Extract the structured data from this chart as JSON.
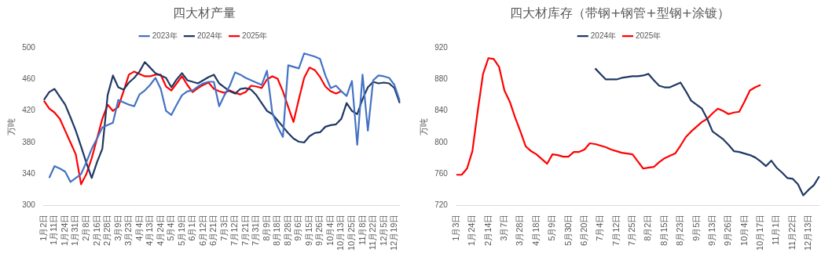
{
  "chart_data": [
    {
      "type": "line",
      "title": "四大材产量",
      "ylabel": "万吨",
      "legend": "top",
      "grid": false,
      "marker": "none",
      "ylim": [
        300,
        500
      ],
      "yticks": [
        300,
        340,
        380,
        420,
        460,
        500
      ],
      "categories": [
        "1月2日",
        null,
        "1月11日",
        null,
        "1月24日",
        null,
        "1月31日",
        null,
        "2月8日",
        null,
        "2月16日",
        null,
        "2月28日",
        null,
        "3月9日",
        null,
        "3月23日",
        null,
        "4月4日",
        null,
        "4月13日",
        null,
        "4月24日",
        null,
        "5月4日",
        null,
        "5月19日",
        null,
        "6月1日",
        null,
        "6月12日",
        null,
        "6月21日",
        null,
        "7月3日",
        null,
        "7月12日",
        null,
        "7月21日",
        null,
        "7月31日",
        null,
        "8月9日",
        null,
        "8月18日",
        null,
        "8月28日",
        null,
        "9月6日",
        null,
        "9月15日",
        null,
        "9月26日",
        null,
        "10月4日",
        null,
        "10月13日",
        null,
        "10月25日",
        null,
        "11月8日",
        null,
        "11月22日",
        null,
        "12月5日",
        null,
        "12月19日",
        null
      ],
      "series": [
        {
          "name": "2023年",
          "color": "#4472c4",
          "values": [
            null,
            335,
            350,
            347,
            343,
            330,
            335,
            340,
            355,
            372,
            385,
            399,
            402,
            405,
            434,
            431,
            428,
            426,
            441,
            446,
            453,
            462,
            448,
            420,
            415,
            428,
            440,
            445,
            446,
            451,
            455,
            457,
            457,
            426,
            440,
            452,
            469,
            466,
            462,
            459,
            456,
            453,
            471,
            418,
            400,
            387,
            478,
            476,
            474,
            493,
            491,
            489,
            486,
            465,
            449,
            452,
            445,
            439,
            458,
            377,
            466,
            395,
            459,
            465,
            464,
            462,
            453,
            433
          ]
        },
        {
          "name": "2024年",
          "color": "#1f3864",
          "values": [
            434,
            444,
            448,
            438,
            428,
            412,
            395,
            375,
            354,
            335,
            355,
            372,
            440,
            465,
            450,
            447,
            456,
            462,
            470,
            482,
            475,
            468,
            465,
            462,
            450,
            460,
            468,
            459,
            457,
            455,
            459,
            463,
            466,
            455,
            450,
            445,
            442,
            448,
            449,
            447,
            440,
            430,
            420,
            416,
            408,
            400,
            392,
            385,
            381,
            380,
            388,
            392,
            393,
            400,
            402,
            403,
            410,
            430,
            420,
            416,
            435,
            450,
            457,
            455,
            456,
            455,
            449,
            430
          ]
        },
        {
          "name": "2025年",
          "color": "#ff0000",
          "values": [
            433,
            423,
            418,
            410,
            395,
            380,
            365,
            327,
            340,
            360,
            385,
            410,
            428,
            420,
            425,
            445,
            466,
            470,
            467,
            464,
            464,
            466,
            466,
            451,
            446,
            455,
            464,
            453,
            444,
            449,
            453,
            456,
            448,
            445,
            443,
            446,
            443,
            441,
            444,
            452,
            451,
            449,
            460,
            464,
            461,
            445,
            425,
            406,
            435,
            462,
            475,
            472,
            463,
            451,
            445,
            442,
            445,
            null,
            null,
            null,
            null,
            null,
            null,
            null,
            null,
            null,
            null,
            null
          ]
        }
      ]
    },
    {
      "type": "line",
      "title": "四大材库存（带钢+钢管+型钢+涂镀）",
      "ylabel": "万吨",
      "legend": "top",
      "grid": false,
      "marker": "none",
      "ylim": [
        720,
        920
      ],
      "yticks": [
        720,
        760,
        800,
        840,
        880,
        920
      ],
      "categories": [
        "1月3日",
        null,
        null,
        "1月24日",
        null,
        null,
        "2月14日",
        null,
        null,
        "3月7日",
        null,
        null,
        "3月28日",
        null,
        null,
        "4月18日",
        null,
        null,
        "5月9日",
        null,
        null,
        "5月30日",
        null,
        null,
        "6月20日",
        null,
        null,
        "7月4日",
        null,
        null,
        "7月12日",
        null,
        null,
        "7月25日",
        null,
        null,
        "8月2日",
        null,
        null,
        "8月15日",
        null,
        null,
        "8月23日",
        null,
        null,
        "9月5日",
        null,
        null,
        "9月13日",
        null,
        null,
        "9月26日",
        null,
        null,
        "10月4日",
        null,
        null,
        "10月17日",
        null,
        null,
        "11月1日",
        null,
        null,
        "11月22日",
        null,
        null,
        "12月13日",
        null,
        null
      ],
      "series": [
        {
          "name": "2024年",
          "color": "#1f3864",
          "values": [
            null,
            null,
            null,
            null,
            null,
            null,
            null,
            null,
            null,
            null,
            null,
            null,
            null,
            null,
            null,
            null,
            null,
            null,
            null,
            null,
            null,
            null,
            null,
            null,
            null,
            null,
            894,
            887,
            880,
            880,
            880,
            882,
            883,
            884,
            884,
            885,
            887,
            879,
            872,
            870,
            870,
            873,
            876,
            865,
            853,
            848,
            843,
            830,
            814,
            809,
            804,
            797,
            789,
            788,
            786,
            784,
            781,
            776,
            770,
            777,
            768,
            762,
            755,
            754,
            747,
            733,
            740,
            746,
            757
          ]
        },
        {
          "name": "2025年",
          "color": "#ff0000",
          "values": [
            759,
            759,
            767,
            789,
            840,
            887,
            907,
            906,
            896,
            866,
            852,
            832,
            814,
            795,
            789,
            785,
            779,
            773,
            785,
            784,
            782,
            782,
            788,
            788,
            791,
            799,
            798,
            796,
            794,
            791,
            789,
            787,
            786,
            785,
            776,
            767,
            768,
            769,
            775,
            780,
            783,
            786,
            796,
            807,
            814,
            820,
            826,
            830,
            837,
            843,
            840,
            836,
            838,
            839,
            852,
            866,
            870,
            873,
            null,
            null,
            null,
            null,
            null,
            null,
            null,
            null,
            null,
            null,
            null
          ]
        }
      ]
    }
  ]
}
